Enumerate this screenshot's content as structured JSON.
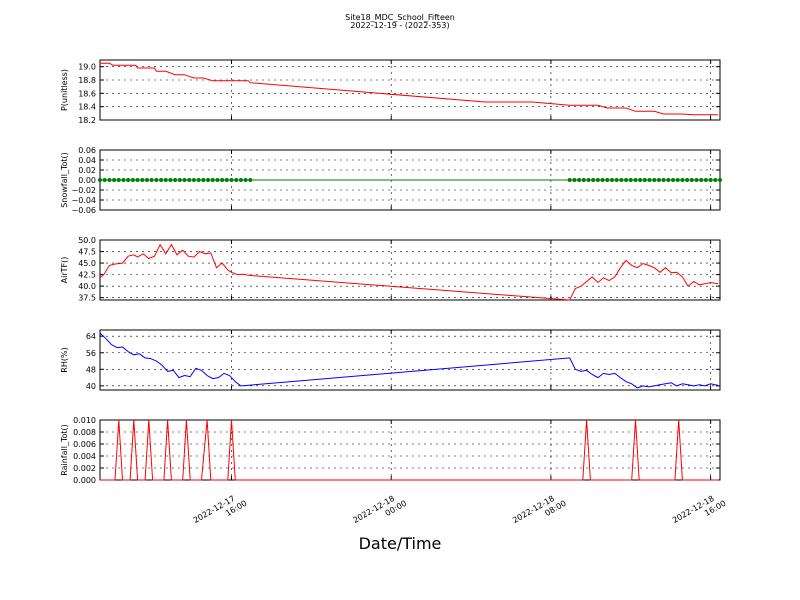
{
  "figure": {
    "title_line1": "Site18_MDC_School_Fifteen",
    "title_line2": "2022-12-19 - (2022-353)",
    "xlabel": "Date/Time",
    "x_tick_labels": [
      {
        "line1": "2022-12-17",
        "line2": "16:00"
      },
      {
        "line1": "2022-12-18",
        "line2": "00:00"
      },
      {
        "line1": "2022-12-18",
        "line2": "08:00"
      },
      {
        "line1": "2022-12-18",
        "line2": "16:00"
      }
    ]
  },
  "chart_data": [
    {
      "type": "line",
      "ylabel": "P(unitless)",
      "ylim": [
        18.2,
        19.1
      ],
      "yticks": [
        "19.0",
        "18.8",
        "18.6",
        "18.4",
        "18.2"
      ],
      "ytick_values": [
        19.0,
        18.8,
        18.6,
        18.4,
        18.2
      ],
      "grid": true,
      "color": "#ff0000",
      "x_hours": [
        0.0,
        0.5,
        0.7,
        1.0,
        1.5,
        1.9,
        2.0,
        2.5,
        2.9,
        3.0,
        3.5,
        4.0,
        4.5,
        5.0,
        5.5,
        6.0,
        6.5,
        7.0,
        7.5,
        7.9,
        8.0,
        20.5,
        23.0,
        25.0,
        26.0,
        26.5,
        27.0,
        27.5,
        28.0,
        28.5,
        29.0,
        29.5,
        30.0,
        30.5,
        31.0,
        31.5,
        32.0,
        32.5,
        32.9
      ],
      "values": [
        19.05,
        19.05,
        19.02,
        19.02,
        19.02,
        19.02,
        18.98,
        18.98,
        18.98,
        18.93,
        18.93,
        18.88,
        18.88,
        18.83,
        18.83,
        18.79,
        18.79,
        18.79,
        18.79,
        18.79,
        18.76,
        18.47,
        18.47,
        18.42,
        18.42,
        18.42,
        18.38,
        18.38,
        18.38,
        18.33,
        18.33,
        18.33,
        18.29,
        18.29,
        18.29,
        18.28,
        18.28,
        18.28,
        18.28
      ]
    },
    {
      "type": "scatter",
      "ylabel": "Snowfall_Tot()",
      "ylim": [
        -0.06,
        0.06
      ],
      "yticks": [
        "0.06",
        "0.04",
        "0.02",
        "0.00",
        "−0.02",
        "−0.04",
        "−0.06"
      ],
      "ytick_values": [
        0.06,
        0.04,
        0.02,
        0.0,
        -0.02,
        -0.04,
        -0.06
      ],
      "grid": true,
      "color": "#007f00",
      "marker_ranges_hours": [
        [
          0.0,
          8.0
        ],
        [
          25.0,
          33.0
        ]
      ],
      "line_range_hours": [
        0.0,
        33.0
      ],
      "value": 0.0
    },
    {
      "type": "line",
      "ylabel": "AirTF()",
      "ylim": [
        37.0,
        50.0
      ],
      "yticks": [
        "50.0",
        "47.5",
        "45.0",
        "42.5",
        "40.0",
        "37.5"
      ],
      "ytick_values": [
        50.0,
        47.5,
        45.0,
        42.5,
        40.0,
        37.5
      ],
      "grid": true,
      "color": "#ff0000",
      "x_hours": [
        0.0,
        0.2,
        0.5,
        0.8,
        1.2,
        1.5,
        1.8,
        2.0,
        2.3,
        2.6,
        2.9,
        3.2,
        3.5,
        3.8,
        4.1,
        4.4,
        4.7,
        5.0,
        5.3,
        5.6,
        5.9,
        6.2,
        6.5,
        6.8,
        7.0,
        7.3,
        7.6,
        8.0,
        25.0,
        25.3,
        25.6,
        25.9,
        26.2,
        26.5,
        26.8,
        27.1,
        27.4,
        27.7,
        28.0,
        28.3,
        28.6,
        28.9,
        29.2,
        29.5,
        29.8,
        30.1,
        30.4,
        30.7,
        31.0,
        31.3,
        31.6,
        31.9,
        32.2,
        32.5,
        32.9
      ],
      "values": [
        41.8,
        42.5,
        44.5,
        44.8,
        45.0,
        46.5,
        46.8,
        46.3,
        47.0,
        46.0,
        46.5,
        49.0,
        47.0,
        49.0,
        46.8,
        47.8,
        46.5,
        46.3,
        47.5,
        47.0,
        47.2,
        44.0,
        45.0,
        43.5,
        43.0,
        42.5,
        42.6,
        42.3,
        37.0,
        39.5,
        40.0,
        41.0,
        42.0,
        40.8,
        41.8,
        41.2,
        42.0,
        44.0,
        45.6,
        44.5,
        44.0,
        44.9,
        44.5,
        44.0,
        43.0,
        44.0,
        42.9,
        43.0,
        42.0,
        40.0,
        41.0,
        40.3,
        40.5,
        40.8,
        40.5
      ]
    },
    {
      "type": "line",
      "ylabel": "RH(%)",
      "ylim": [
        38.0,
        67.0
      ],
      "yticks": [
        "64",
        "56",
        "48",
        "40"
      ],
      "ytick_values": [
        64,
        56,
        48,
        40
      ],
      "grid": true,
      "color": "#0000ff",
      "x_hours": [
        0.0,
        0.3,
        0.6,
        0.9,
        1.2,
        1.5,
        1.8,
        2.1,
        2.4,
        2.7,
        3.0,
        3.3,
        3.6,
        3.9,
        4.2,
        4.5,
        4.8,
        5.1,
        5.4,
        5.7,
        6.0,
        6.3,
        6.6,
        6.9,
        7.2,
        7.5,
        25.0,
        25.3,
        25.6,
        25.9,
        26.2,
        26.5,
        26.8,
        27.1,
        27.4,
        27.7,
        28.0,
        28.3,
        28.6,
        28.9,
        29.2,
        29.5,
        29.8,
        30.1,
        30.4,
        30.7,
        31.0,
        31.3,
        31.6,
        31.9,
        32.2,
        32.5,
        32.9
      ],
      "values": [
        65.5,
        63.0,
        60.0,
        58.5,
        58.8,
        56.5,
        55.0,
        55.5,
        53.5,
        53.2,
        52.0,
        50.0,
        47.0,
        47.5,
        44.0,
        45.0,
        44.5,
        48.5,
        47.5,
        45.0,
        43.5,
        44.0,
        46.0,
        45.0,
        42.0,
        40.0,
        53.5,
        48.0,
        47.0,
        47.5,
        45.5,
        44.0,
        46.0,
        45.5,
        46.0,
        44.0,
        42.0,
        41.0,
        39.0,
        40.0,
        39.5,
        40.0,
        40.5,
        41.0,
        41.5,
        40.0,
        41.0,
        40.5,
        40.0,
        40.5,
        40.0,
        41.0,
        40.2
      ]
    },
    {
      "type": "line",
      "ylabel": "Rainfall_Tot()",
      "ylim": [
        0.0,
        0.01
      ],
      "yticks": [
        "0.010",
        "0.008",
        "0.006",
        "0.004",
        "0.002",
        "0.000"
      ],
      "ytick_values": [
        0.01,
        0.008,
        0.006,
        0.004,
        0.002,
        0.0
      ],
      "grid": true,
      "color": "#ff0000",
      "x_hours": [
        0.0,
        0.8,
        1.0,
        1.2,
        1.6,
        1.8,
        2.0,
        2.4,
        2.6,
        2.8,
        3.4,
        3.6,
        3.8,
        4.4,
        4.6,
        4.8,
        5.4,
        5.7,
        5.9,
        6.8,
        7.0,
        7.2,
        25.7,
        25.9,
        26.1,
        28.3,
        28.5,
        28.7,
        30.6,
        30.8,
        31.0,
        32.9
      ],
      "values": [
        0,
        0,
        0.01,
        0,
        0,
        0.01,
        0,
        0,
        0.01,
        0,
        0,
        0.01,
        0,
        0,
        0.01,
        0,
        0,
        0.01,
        0,
        0,
        0.01,
        0,
        0,
        0.01,
        0,
        0,
        0.01,
        0,
        0,
        0.01,
        0,
        0
      ]
    }
  ]
}
